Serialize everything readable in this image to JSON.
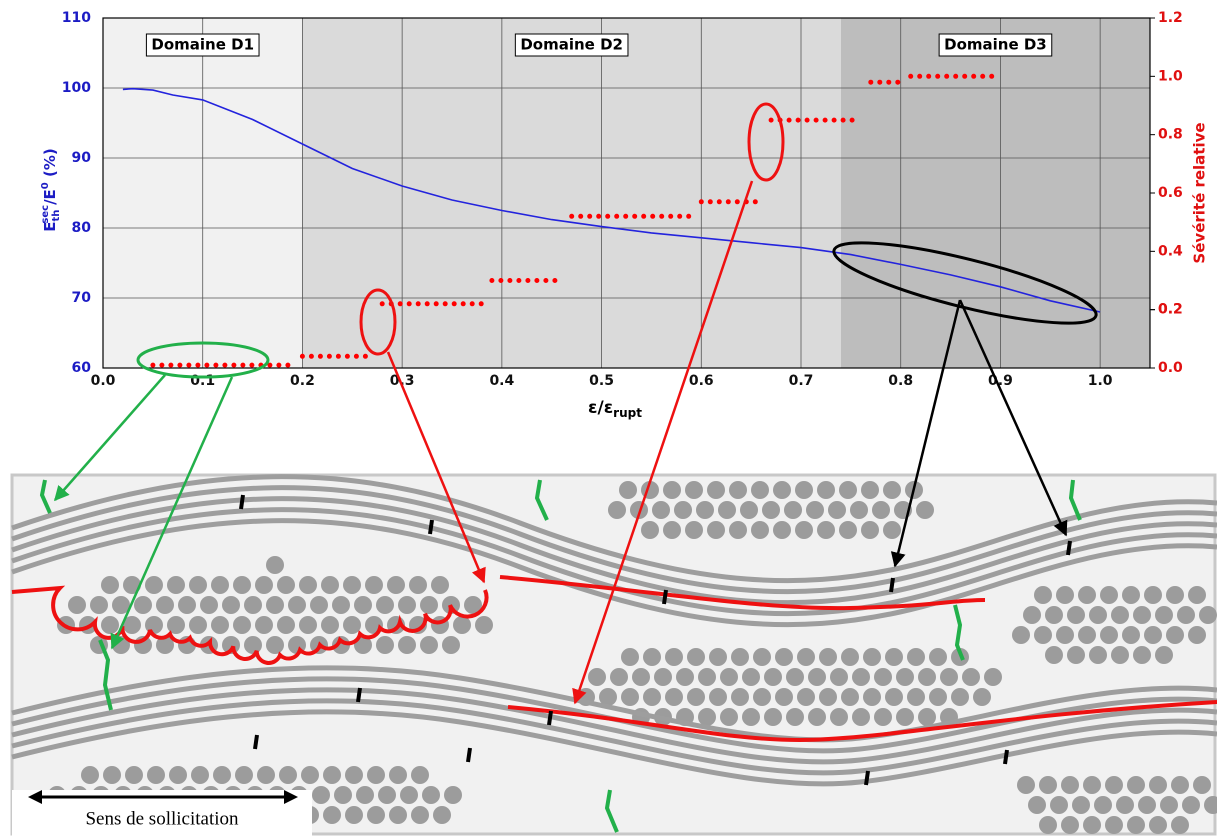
{
  "chart_data": {
    "type": "line",
    "ylabel_parts": [
      "E",
      "th",
      "sec",
      "/E",
      "0",
      " (%)"
    ],
    "y2label": "Sévérité relative",
    "xlabel_parts": [
      "ε/ε",
      "rupt"
    ],
    "xlim": [
      0,
      1.05
    ],
    "ylim": [
      60,
      110
    ],
    "y2lim": [
      0,
      1.2
    ],
    "xticks": [
      {
        "value": 0,
        "label": "0.0"
      },
      0.1,
      0.2,
      0.3,
      0.4,
      0.5,
      0.6,
      0.7,
      0.8,
      0.9,
      {
        "value": 1,
        "label": "1.0"
      }
    ],
    "yticks": [
      60,
      70,
      80,
      90,
      100,
      110
    ],
    "y2ticks": [
      {
        "value": 0,
        "label": "0.0"
      },
      0.2,
      0.4,
      0.6,
      0.8,
      {
        "value": 1,
        "label": "1.0"
      },
      0.2,
      1.2
    ],
    "grid": true,
    "regions": [
      {
        "label": "Domaine D1",
        "x": [
          0,
          0.2
        ],
        "color": "#f1f1f1"
      },
      {
        "label": "Domaine D2",
        "x": [
          0.2,
          0.74
        ],
        "color": "#dadada"
      },
      {
        "label": "Domaine D3",
        "x": [
          0.74,
          1.05
        ],
        "color": "#bdbdbd"
      }
    ],
    "series": [
      {
        "color": "#2323dd",
        "x": [
          0.02,
          0.03,
          0.05,
          0.07,
          0.1,
          0.15,
          0.2,
          0.25,
          0.3,
          0.35,
          0.4,
          0.45,
          0.5,
          0.55,
          0.6,
          0.65,
          0.7,
          0.75,
          0.8,
          0.85,
          0.9,
          0.95,
          1.0
        ],
        "values": [
          99.8,
          99.9,
          99.7,
          99.0,
          98.3,
          95.5,
          92.0,
          88.5,
          86.0,
          84.0,
          82.5,
          81.2,
          80.2,
          79.3,
          78.6,
          77.9,
          77.2,
          76.2,
          74.8,
          73.3,
          71.6,
          69.6,
          68.0
        ]
      },
      {
        "axis": "y2",
        "color": "#ff0000",
        "style": "dotted",
        "x": [
          0.05,
          0.19,
          null,
          0.2,
          0.27,
          null,
          0.28,
          0.38,
          null,
          0.39,
          0.46,
          null,
          0.47,
          0.59,
          null,
          0.6,
          0.66,
          null,
          0.67,
          0.76,
          null,
          0.77,
          0.8,
          null,
          0.81,
          0.9
        ],
        "values": [
          0.01,
          0.01,
          null,
          0.04,
          0.04,
          null,
          0.22,
          0.22,
          null,
          0.3,
          0.3,
          null,
          0.52,
          0.52,
          null,
          0.57,
          0.57,
          null,
          0.85,
          0.85,
          null,
          0.98,
          0.98,
          null,
          1.0,
          1.0
        ]
      }
    ]
  },
  "diagram": {
    "caption": "Sens de sollicitation"
  }
}
